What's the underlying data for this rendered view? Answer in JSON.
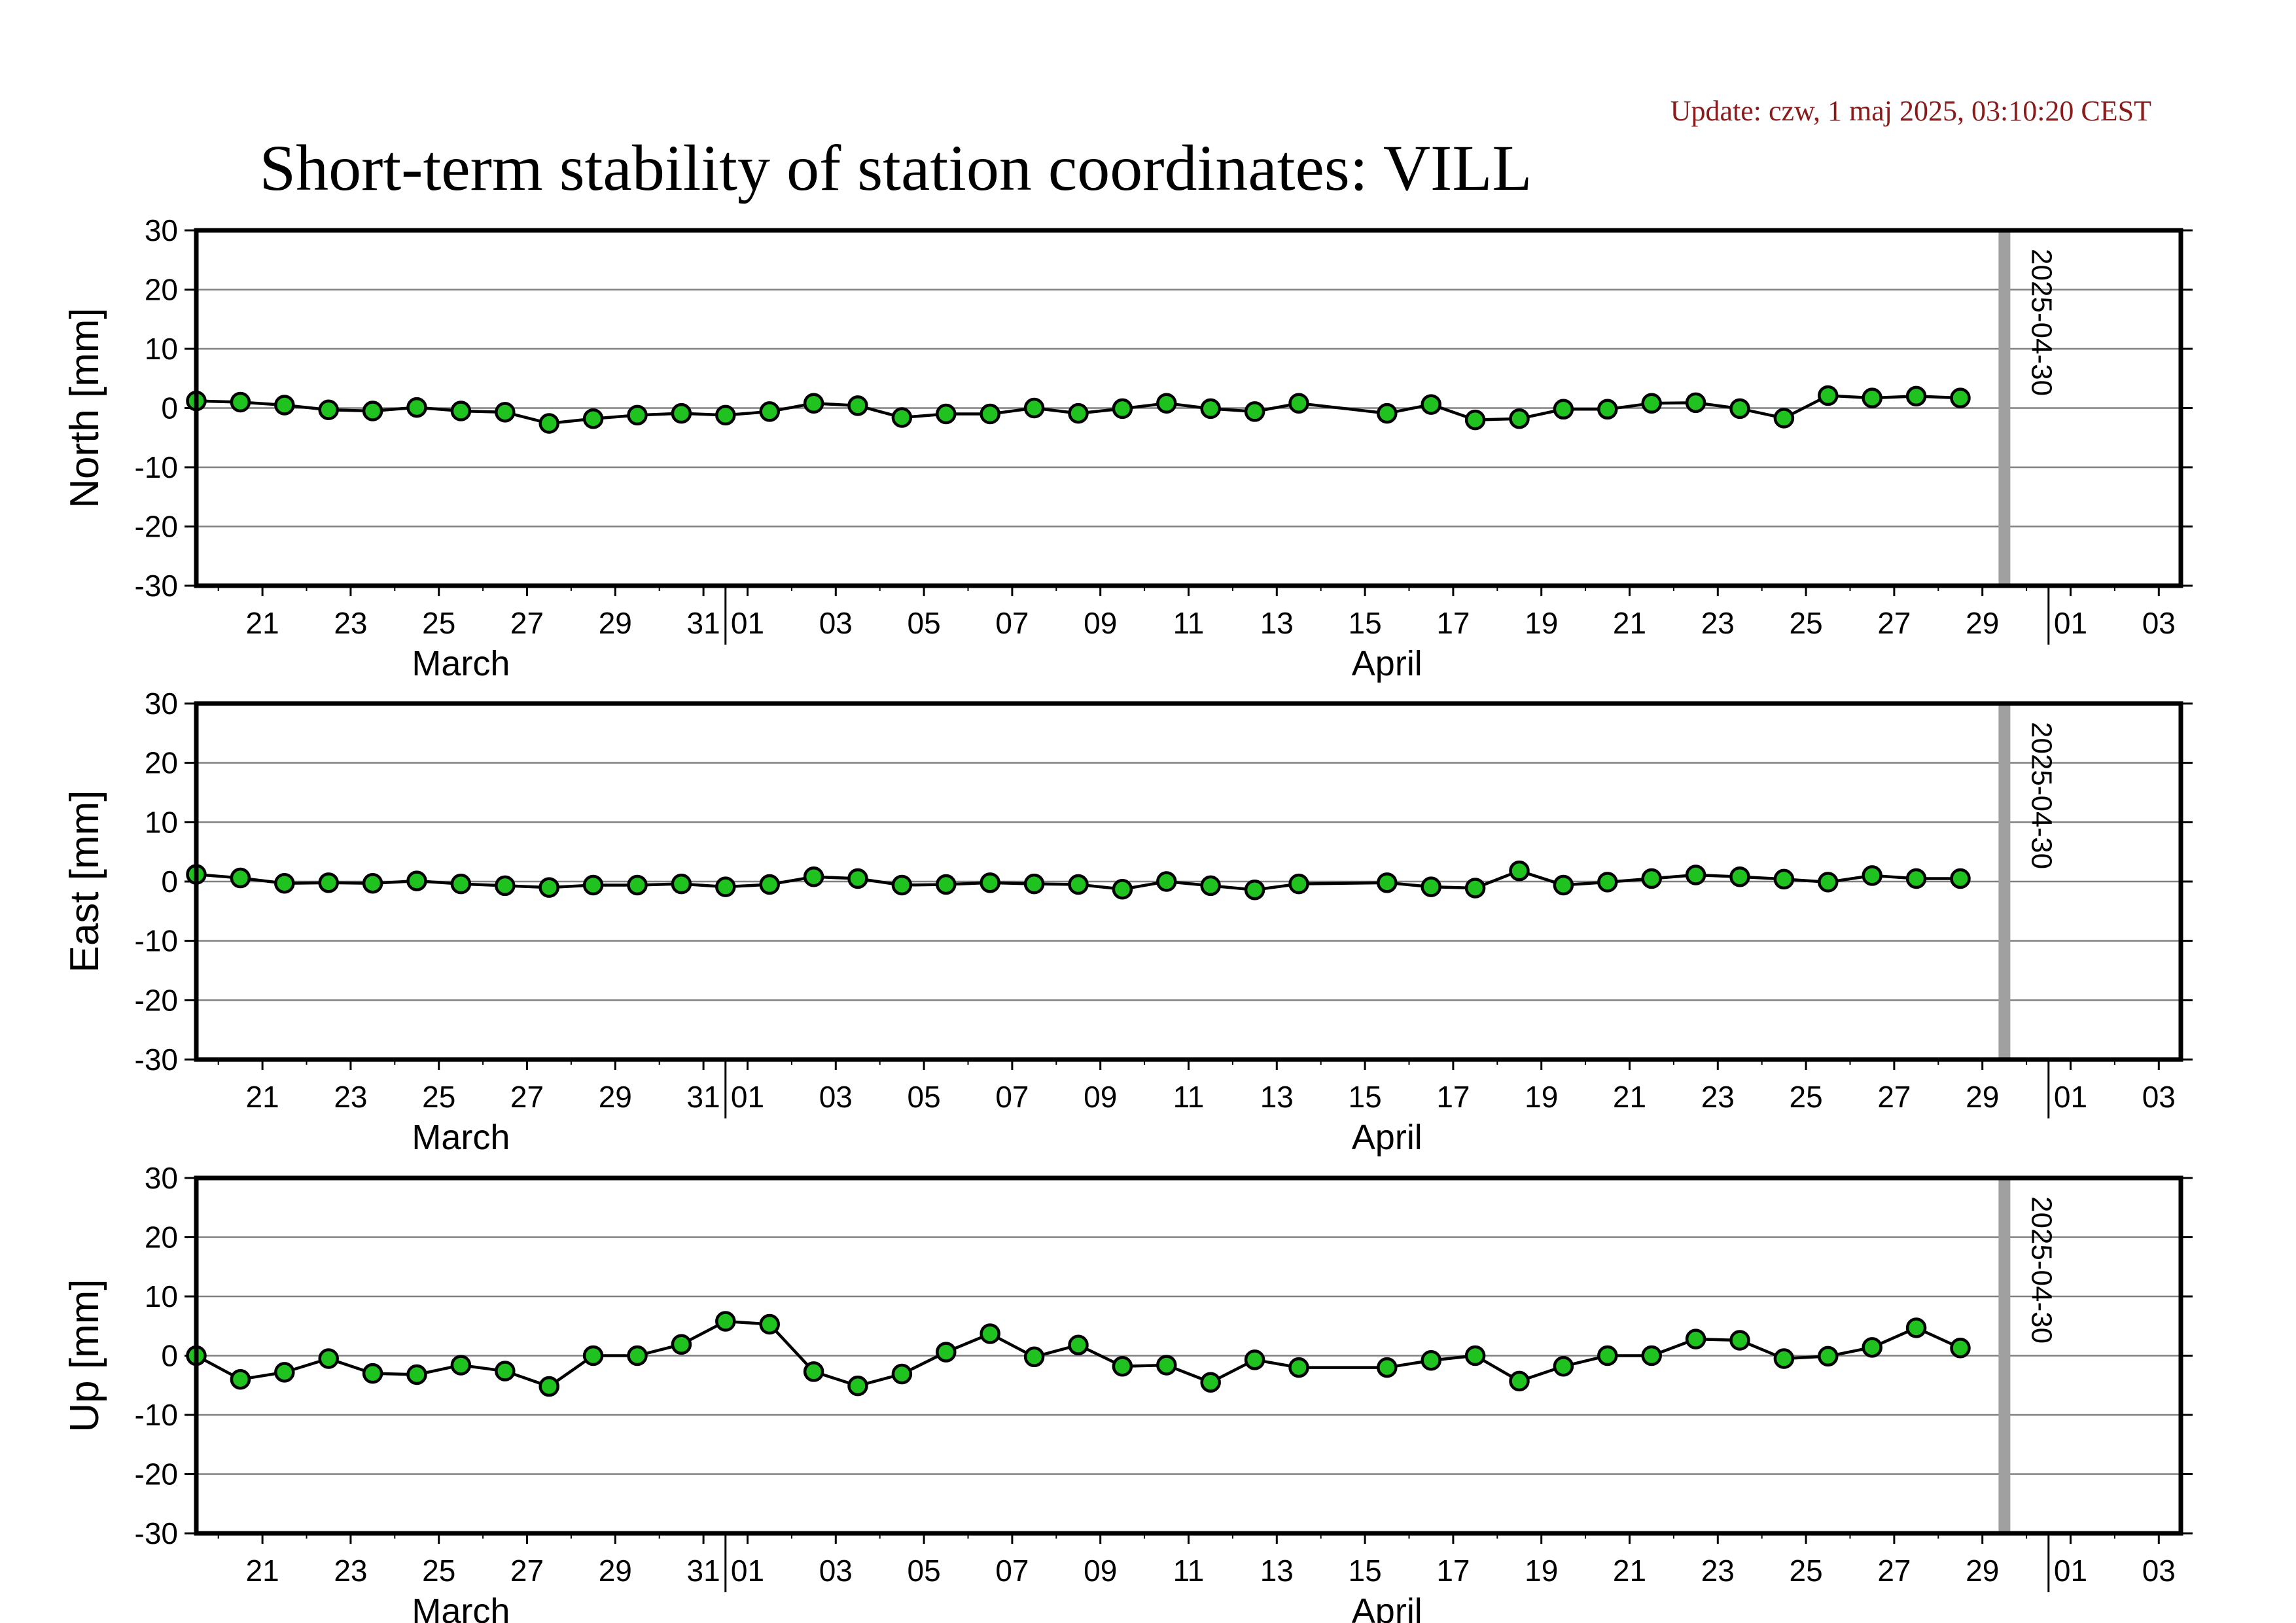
{
  "header": {
    "update": "Update: czw, 1 maj 2025, 03:10:20 CEST",
    "title": "Short-term stability of station coordinates: VILL"
  },
  "colors": {
    "point_fill": "#1fc21f",
    "point_stroke": "#000000",
    "line": "#000000",
    "grid": "#808080",
    "marker": "#a0a0a0",
    "update_text": "#8b1a1a"
  },
  "chart_data": [
    {
      "type": "line",
      "ylabel": "North [mm]",
      "ylim": [
        -30,
        30
      ],
      "yticks": [
        30,
        20,
        10,
        0,
        -10,
        -20,
        -30
      ],
      "grid": true,
      "xlim": [
        "2025-03-20",
        "2025-05-04"
      ],
      "xtick_labels": [
        "21",
        "23",
        "25",
        "27",
        "29",
        "31",
        "01",
        "03",
        "05",
        "07",
        "09",
        "11",
        "13",
        "15",
        "17",
        "19",
        "21",
        "23",
        "25",
        "27",
        "29",
        "01",
        "03"
      ],
      "month_labels": [
        "March",
        "April"
      ],
      "marker_date": "2025-04-30",
      "marker_label": "2025-04-30",
      "series": [
        {
          "x": [
            "2025-03-20",
            "2025-03-21",
            "2025-03-22",
            "2025-03-23",
            "2025-03-24",
            "2025-03-25",
            "2025-03-26",
            "2025-03-27",
            "2025-03-28",
            "2025-03-29",
            "2025-03-30",
            "2025-03-31",
            "2025-04-01",
            "2025-04-02",
            "2025-04-03",
            "2025-04-04",
            "2025-04-05",
            "2025-04-06",
            "2025-04-07",
            "2025-04-08",
            "2025-04-09",
            "2025-04-10",
            "2025-04-11",
            "2025-04-12",
            "2025-04-13",
            "2025-04-14",
            "2025-04-16",
            "2025-04-17",
            "2025-04-18",
            "2025-04-19",
            "2025-04-20",
            "2025-04-21",
            "2025-04-22",
            "2025-04-23",
            "2025-04-24",
            "2025-04-25",
            "2025-04-26",
            "2025-04-27",
            "2025-04-28",
            "2025-04-29"
          ],
          "y": [
            1.2,
            1.0,
            0.5,
            -0.3,
            -0.5,
            0.1,
            -0.5,
            -0.7,
            -2.6,
            -1.8,
            -1.2,
            -0.9,
            -1.2,
            -0.6,
            0.8,
            0.4,
            -1.6,
            -1.0,
            -1.0,
            0.0,
            -0.9,
            -0.1,
            0.8,
            -0.1,
            -0.6,
            0.8,
            -0.9,
            0.6,
            -2.0,
            -1.8,
            -0.2,
            -0.2,
            0.8,
            0.9,
            -0.1,
            -1.7,
            2.1,
            1.7,
            2.0,
            1.7
          ]
        }
      ]
    },
    {
      "type": "line",
      "ylabel": "East [mm]",
      "ylim": [
        -30,
        30
      ],
      "yticks": [
        30,
        20,
        10,
        0,
        -10,
        -20,
        -30
      ],
      "grid": true,
      "xlim": [
        "2025-03-20",
        "2025-05-04"
      ],
      "xtick_labels": [
        "21",
        "23",
        "25",
        "27",
        "29",
        "31",
        "01",
        "03",
        "05",
        "07",
        "09",
        "11",
        "13",
        "15",
        "17",
        "19",
        "21",
        "23",
        "25",
        "27",
        "29",
        "01",
        "03"
      ],
      "month_labels": [
        "March",
        "April"
      ],
      "marker_date": "2025-04-30",
      "marker_label": "2025-04-30",
      "series": [
        {
          "x": [
            "2025-03-20",
            "2025-03-21",
            "2025-03-22",
            "2025-03-23",
            "2025-03-24",
            "2025-03-25",
            "2025-03-26",
            "2025-03-27",
            "2025-03-28",
            "2025-03-29",
            "2025-03-30",
            "2025-03-31",
            "2025-04-01",
            "2025-04-02",
            "2025-04-03",
            "2025-04-04",
            "2025-04-05",
            "2025-04-06",
            "2025-04-07",
            "2025-04-08",
            "2025-04-09",
            "2025-04-10",
            "2025-04-11",
            "2025-04-12",
            "2025-04-13",
            "2025-04-14",
            "2025-04-16",
            "2025-04-17",
            "2025-04-18",
            "2025-04-19",
            "2025-04-20",
            "2025-04-21",
            "2025-04-22",
            "2025-04-23",
            "2025-04-24",
            "2025-04-25",
            "2025-04-26",
            "2025-04-27",
            "2025-04-28",
            "2025-04-29"
          ],
          "y": [
            1.2,
            0.6,
            -0.3,
            -0.2,
            -0.3,
            0.1,
            -0.4,
            -0.7,
            -1.0,
            -0.6,
            -0.6,
            -0.4,
            -0.9,
            -0.5,
            0.8,
            0.5,
            -0.6,
            -0.5,
            -0.2,
            -0.4,
            -0.5,
            -1.3,
            0.0,
            -0.7,
            -1.4,
            -0.4,
            -0.2,
            -0.9,
            -1.1,
            1.8,
            -0.6,
            -0.1,
            0.5,
            1.1,
            0.8,
            0.4,
            -0.1,
            1.0,
            0.5,
            0.5
          ]
        }
      ]
    },
    {
      "type": "line",
      "ylabel": "Up [mm]",
      "ylim": [
        -30,
        30
      ],
      "yticks": [
        30,
        20,
        10,
        0,
        -10,
        -20,
        -30
      ],
      "grid": true,
      "xlim": [
        "2025-03-20",
        "2025-05-04"
      ],
      "xtick_labels": [
        "21",
        "23",
        "25",
        "27",
        "29",
        "31",
        "01",
        "03",
        "05",
        "07",
        "09",
        "11",
        "13",
        "15",
        "17",
        "19",
        "21",
        "23",
        "25",
        "27",
        "29",
        "01",
        "03"
      ],
      "month_labels": [
        "March",
        "April"
      ],
      "marker_date": "2025-04-30",
      "marker_label": "2025-04-30",
      "series": [
        {
          "x": [
            "2025-03-20",
            "2025-03-21",
            "2025-03-22",
            "2025-03-23",
            "2025-03-24",
            "2025-03-25",
            "2025-03-26",
            "2025-03-27",
            "2025-03-28",
            "2025-03-29",
            "2025-03-30",
            "2025-03-31",
            "2025-04-01",
            "2025-04-02",
            "2025-04-03",
            "2025-04-04",
            "2025-04-05",
            "2025-04-06",
            "2025-04-07",
            "2025-04-08",
            "2025-04-09",
            "2025-04-10",
            "2025-04-11",
            "2025-04-12",
            "2025-04-13",
            "2025-04-14",
            "2025-04-16",
            "2025-04-17",
            "2025-04-18",
            "2025-04-19",
            "2025-04-20",
            "2025-04-21",
            "2025-04-22",
            "2025-04-23",
            "2025-04-24",
            "2025-04-25",
            "2025-04-26",
            "2025-04-27",
            "2025-04-28",
            "2025-04-29"
          ],
          "y": [
            0.0,
            -4.0,
            -2.8,
            -0.5,
            -3.0,
            -3.2,
            -1.6,
            -2.6,
            -5.2,
            0.0,
            0.0,
            1.9,
            5.8,
            5.3,
            -2.7,
            -5.1,
            -3.1,
            0.6,
            3.7,
            -0.2,
            1.8,
            -1.8,
            -1.6,
            -4.5,
            -0.7,
            -2.0,
            -2.0,
            -0.8,
            0.0,
            -4.3,
            -1.8,
            0.0,
            0.0,
            2.8,
            2.6,
            -0.5,
            -0.1,
            1.4,
            4.7,
            1.3
          ]
        }
      ]
    }
  ]
}
